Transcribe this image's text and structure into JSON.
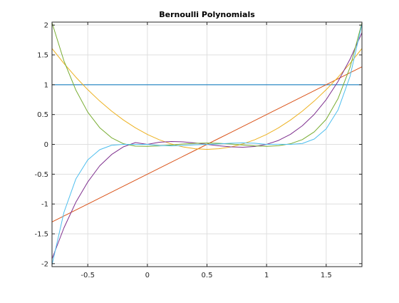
{
  "chart_data": {
    "type": "line",
    "title": "Bernoulli Polynomials",
    "xlabel": "",
    "ylabel": "",
    "xlim": [
      -0.8,
      1.8
    ],
    "ylim": [
      -2.05,
      2.05
    ],
    "xticks": [
      -0.5,
      0,
      0.5,
      1,
      1.5
    ],
    "xtick_labels": [
      "-0.5",
      "0",
      "0.5",
      "1",
      "1.5"
    ],
    "yticks": [
      -2,
      -1.5,
      -1,
      -0.5,
      0,
      0.5,
      1,
      1.5,
      2
    ],
    "ytick_labels": [
      "-2",
      "-1.5",
      "-1",
      "-0.5",
      "0",
      "0.5",
      "1",
      "1.5",
      "2"
    ],
    "grid": true,
    "legend": "none",
    "x": [
      -0.8,
      -0.7,
      -0.6,
      -0.5,
      -0.4,
      -0.3,
      -0.2,
      -0.1,
      0,
      0.1,
      0.2,
      0.3,
      0.4,
      0.5,
      0.6,
      0.7,
      0.8,
      0.9,
      1,
      1.1,
      1.2,
      1.3,
      1.4,
      1.5,
      1.6,
      1.7,
      1.8
    ],
    "series": [
      {
        "color": "#0072bd",
        "values": [
          1,
          1,
          1,
          1,
          1,
          1,
          1,
          1,
          1,
          1,
          1,
          1,
          1,
          1,
          1,
          1,
          1,
          1,
          1,
          1,
          1,
          1,
          1,
          1,
          1,
          1,
          1
        ]
      },
      {
        "color": "#d95319",
        "values": [
          -1.3,
          -1.2,
          -1.1,
          -1.0,
          -0.9,
          -0.8,
          -0.7,
          -0.6,
          -0.5,
          -0.4,
          -0.3,
          -0.2,
          -0.1,
          0.0,
          0.1,
          0.2,
          0.3,
          0.4,
          0.5,
          0.6,
          0.7,
          0.8,
          0.9,
          1.0,
          1.1,
          1.2,
          1.3
        ]
      },
      {
        "color": "#edb120",
        "values": [
          1.607,
          1.357,
          1.127,
          0.917,
          0.727,
          0.557,
          0.407,
          0.277,
          0.167,
          0.077,
          0.007,
          -0.043,
          -0.073,
          -0.083,
          -0.073,
          -0.043,
          0.007,
          0.077,
          0.167,
          0.277,
          0.407,
          0.557,
          0.727,
          0.917,
          1.127,
          1.357,
          1.607
        ]
      },
      {
        "color": "#7e2f8e",
        "values": [
          -1.92,
          -1.4,
          -0.97,
          -0.63,
          -0.36,
          -0.17,
          -0.04,
          0.03,
          0.0,
          0.036,
          0.048,
          0.042,
          0.024,
          0.0,
          -0.024,
          -0.042,
          -0.048,
          -0.036,
          0.0,
          0.066,
          0.168,
          0.312,
          0.504,
          0.75,
          1.056,
          1.428,
          1.872
        ]
      },
      {
        "color": "#77ac30",
        "values": [
          2.04,
          1.4,
          0.91,
          0.54,
          0.28,
          0.11,
          0.01,
          -0.03,
          -0.033,
          -0.026,
          -0.01,
          0.006,
          0.018,
          0.023,
          0.018,
          0.006,
          -0.01,
          -0.026,
          -0.033,
          -0.023,
          0.01,
          0.08,
          0.21,
          0.42,
          0.77,
          1.29,
          2.04
        ]
      },
      {
        "color": "#4dbeee",
        "values": [
          -2.02,
          -1.14,
          -0.58,
          -0.26,
          -0.09,
          -0.015,
          0.0,
          -0.002,
          0.0,
          -0.019,
          -0.025,
          -0.019,
          -0.008,
          0.0,
          0.008,
          0.019,
          0.025,
          0.019,
          0.0,
          0.002,
          0.0,
          0.015,
          0.09,
          0.26,
          0.58,
          1.14,
          2.02
        ]
      }
    ]
  }
}
